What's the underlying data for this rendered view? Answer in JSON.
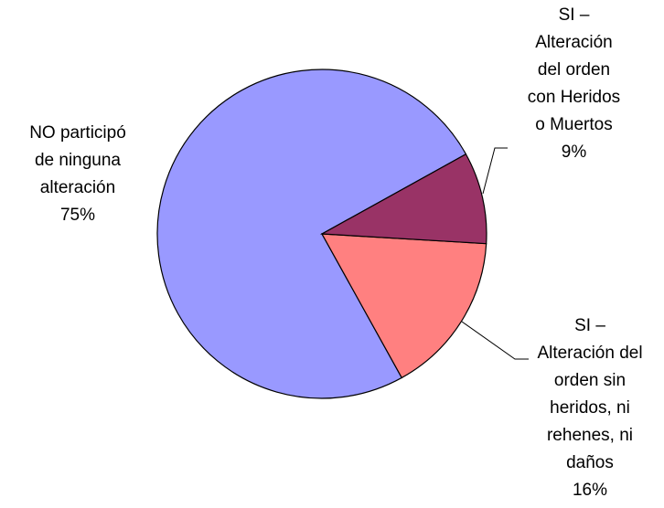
{
  "chart_data": {
    "type": "pie",
    "categories": [
      "SI – Alteración del orden con Heridos o Muertos",
      "SI – Alteración del orden sin heridos, ni rehenes, ni daños",
      "NO participó de ninguna alteración"
    ],
    "values": [
      9,
      16,
      75
    ],
    "value_labels": [
      "9%",
      "16%",
      "75%"
    ],
    "colors": [
      "#993366",
      "#ff8080",
      "#9999ff"
    ]
  }
}
